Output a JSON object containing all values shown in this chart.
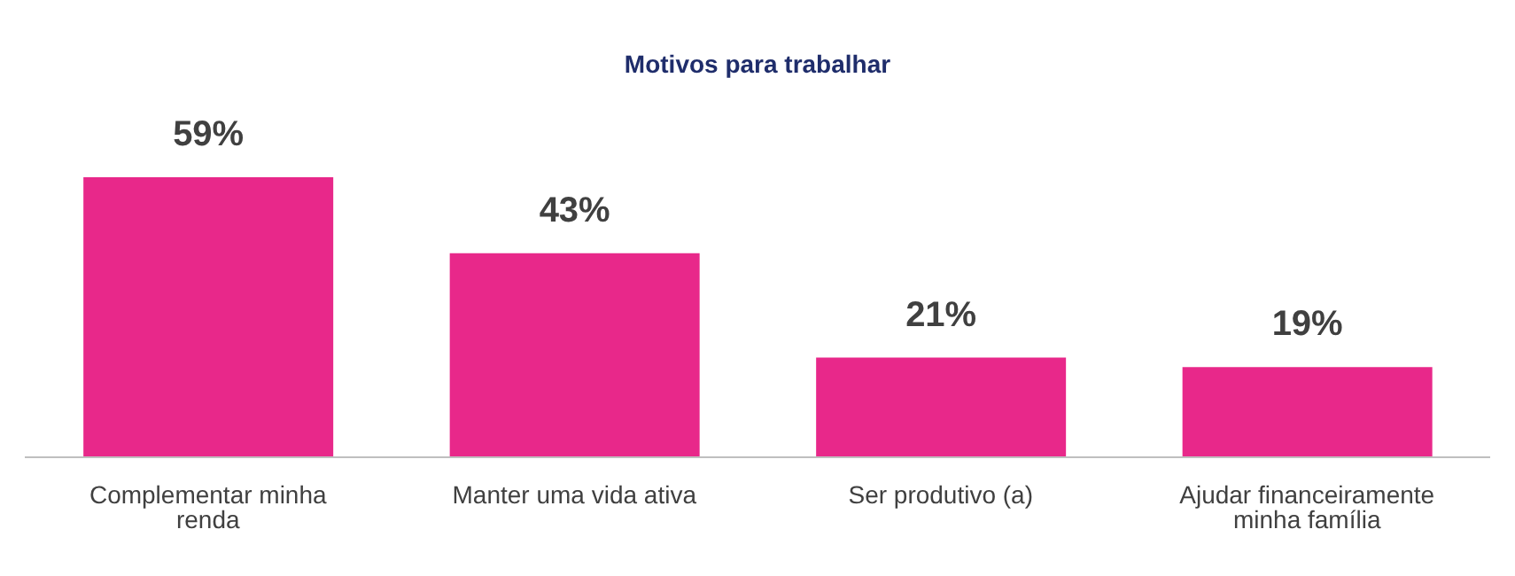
{
  "chart_data": {
    "type": "bar",
    "title": "Motivos para trabalhar",
    "categories": [
      "Complementar minha renda",
      "Manter uma vida ativa",
      "Ser produtivo (a)",
      "Ajudar financeiramente minha família"
    ],
    "values": [
      59,
      43,
      21,
      19
    ],
    "value_labels": [
      "59%",
      "43%",
      "21%",
      "19%"
    ],
    "color": "#e8288a",
    "grid": false,
    "legend": false
  }
}
